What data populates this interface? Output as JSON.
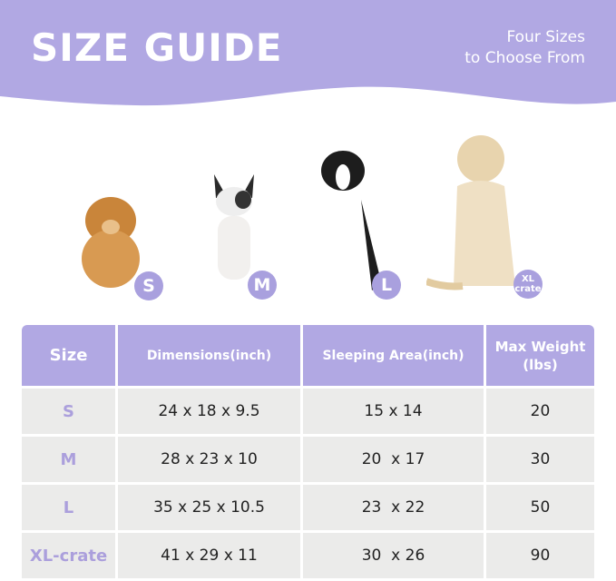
{
  "header": {
    "title": "SIZE GUIDE",
    "subtitle_line1": "Four Sizes",
    "subtitle_line2": "to Choose From"
  },
  "colors": {
    "accent": "#b1a8e3",
    "badge": "#a9a0de",
    "cell": "#ebebea"
  },
  "dogs": [
    {
      "badge": "S",
      "breed_icon": "pomeranian-photo"
    },
    {
      "badge": "M",
      "breed_icon": "french-bulldog-photo"
    },
    {
      "badge": "L",
      "breed_icon": "border-collie-photo"
    },
    {
      "badge_line1": "XL",
      "badge_line2": "crate",
      "breed_icon": "labrador-photo"
    }
  ],
  "table": {
    "headers": [
      "Size",
      "Dimensions(inch)",
      "Sleeping Area(inch)",
      "Max Weight",
      "(lbs)"
    ],
    "rows": [
      {
        "size": "S",
        "dimensions": "24 x 18 x 9.5",
        "sleeping_area": "15 x 14",
        "max_weight": "20"
      },
      {
        "size": "M",
        "dimensions": "28 x 23 x 10",
        "sleeping_area": "20  x 17",
        "max_weight": "30"
      },
      {
        "size": "L",
        "dimensions": "35 x 25 x 10.5",
        "sleeping_area": "23  x 22",
        "max_weight": "50"
      },
      {
        "size": "XL-crate",
        "dimensions": "41 x 29 x 11",
        "sleeping_area": "30  x 26",
        "max_weight": "90"
      }
    ]
  }
}
